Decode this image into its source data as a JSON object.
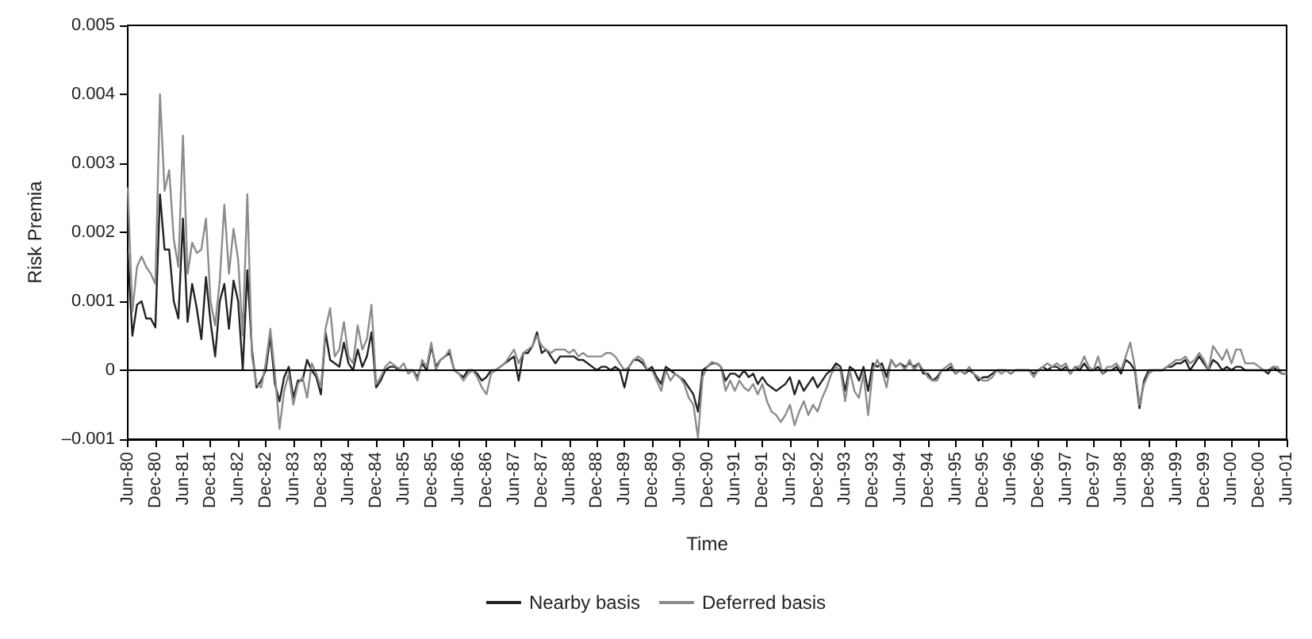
{
  "chart_data": {
    "type": "line",
    "xlabel": "Time",
    "ylabel": "Risk Premia",
    "categories": [
      "Jun-80",
      null,
      null,
      null,
      null,
      null,
      "Dec-80",
      null,
      null,
      null,
      null,
      null,
      "Jun-81",
      null,
      null,
      null,
      null,
      null,
      "Dec-81",
      null,
      null,
      null,
      null,
      null,
      "Jun-82",
      null,
      null,
      null,
      null,
      null,
      "Dec-82",
      null,
      null,
      null,
      null,
      null,
      "Jun-83",
      null,
      null,
      null,
      null,
      null,
      "Dec-83",
      null,
      null,
      null,
      null,
      null,
      "Jun-84",
      null,
      null,
      null,
      null,
      null,
      "Dec-84",
      null,
      null,
      null,
      null,
      null,
      "Jun-85",
      null,
      null,
      null,
      null,
      null,
      "Dec-85",
      null,
      null,
      null,
      null,
      null,
      "Jun-86",
      null,
      null,
      null,
      null,
      null,
      "Dec-86",
      null,
      null,
      null,
      null,
      null,
      "Jun-87",
      null,
      null,
      null,
      null,
      null,
      "Dec-87",
      null,
      null,
      null,
      null,
      null,
      "Jun-88",
      null,
      null,
      null,
      null,
      null,
      "Dec-88",
      null,
      null,
      null,
      null,
      null,
      "Jun-89",
      null,
      null,
      null,
      null,
      null,
      "Dec-89",
      null,
      null,
      null,
      null,
      null,
      "Jun-90",
      null,
      null,
      null,
      null,
      null,
      "Dec-90",
      null,
      null,
      null,
      null,
      null,
      "Jun-91",
      null,
      null,
      null,
      null,
      null,
      "Dec-91",
      null,
      null,
      null,
      null,
      null,
      "Jun-92",
      null,
      null,
      null,
      null,
      null,
      "Dec-92",
      null,
      null,
      null,
      null,
      null,
      "Jun-93",
      null,
      null,
      null,
      null,
      null,
      "Dec-93",
      null,
      null,
      null,
      null,
      null,
      "Jun-94",
      null,
      null,
      null,
      null,
      null,
      "Dec-94",
      null,
      null,
      null,
      null,
      null,
      "Jun-95",
      null,
      null,
      null,
      null,
      null,
      "Dec-95",
      null,
      null,
      null,
      null,
      null,
      "Jun-96",
      null,
      null,
      null,
      null,
      null,
      "Dec-96",
      null,
      null,
      null,
      null,
      null,
      "Jun-97",
      null,
      null,
      null,
      null,
      null,
      "Dec-97",
      null,
      null,
      null,
      null,
      null,
      "Jun-98",
      null,
      null,
      null,
      null,
      null,
      "Dec-98",
      null,
      null,
      null,
      null,
      null,
      "Jun-99",
      null,
      null,
      null,
      null,
      null,
      "Dec-99",
      null,
      null,
      null,
      null,
      null,
      "Jun-00",
      null,
      null,
      null,
      null,
      null,
      "Dec-00",
      null,
      null,
      null,
      null,
      null,
      "Jun-01"
    ],
    "series": [
      {
        "name": "Nearby basis",
        "color": "#222222",
        "values": [
          0.0017,
          0.0005,
          0.00095,
          0.001,
          0.00075,
          0.00075,
          0.00062,
          0.00255,
          0.00175,
          0.00175,
          0.001,
          0.00075,
          0.0022,
          0.0007,
          0.00125,
          0.0009,
          0.00045,
          0.00135,
          0.0007,
          0.0002,
          0.001,
          0.00125,
          0.0006,
          0.0013,
          0.001,
          0,
          0.00145,
          0.0003,
          -0.00025,
          -0.00015,
          0,
          0.0005,
          -0.0002,
          -0.00045,
          -0.0001,
          5e-05,
          -0.0004,
          -0.00015,
          -0.00015,
          0.00015,
          0,
          -0.0001,
          -0.00035,
          0.00055,
          0.00015,
          0.0001,
          5e-05,
          0.0004,
          0.0001,
          0,
          0.0003,
          5e-05,
          0.0002,
          0.00055,
          -0.00025,
          -0.00015,
          0,
          5e-05,
          5e-05,
          0,
          0,
          0,
          0,
          -0.0001,
          0.0001,
          0,
          0.00035,
          5e-05,
          0.00015,
          0.0002,
          0.00025,
          0,
          -5e-05,
          -0.0001,
          0,
          0,
          -5e-05,
          -0.00015,
          -0.0001,
          0,
          0,
          5e-05,
          0.0001,
          0.00015,
          0.0002,
          -0.00015,
          0.00025,
          0.00025,
          0.00035,
          0.00055,
          0.00025,
          0.0003,
          0.0002,
          0.0001,
          0.0002,
          0.0002,
          0.0002,
          0.0002,
          0.00015,
          0.00015,
          0.0001,
          5e-05,
          0,
          5e-05,
          5e-05,
          0,
          5e-05,
          0,
          -0.00025,
          5e-05,
          0.00015,
          0.00015,
          0.0001,
          0,
          5e-05,
          -0.0001,
          -0.0002,
          5e-05,
          0,
          -5e-05,
          -0.0001,
          -0.00015,
          -0.00025,
          -0.00035,
          -0.0006,
          0,
          5e-05,
          0.0001,
          0.0001,
          5e-05,
          -0.00015,
          -5e-05,
          -5e-05,
          -0.0001,
          0,
          -0.0001,
          -5e-05,
          -0.0002,
          -0.0001,
          -0.0002,
          -0.00025,
          -0.0003,
          -0.00025,
          -0.0002,
          -0.0001,
          -0.00035,
          -0.00015,
          -0.0003,
          -0.0002,
          -0.0001,
          -0.00025,
          -0.00015,
          -5e-05,
          0,
          0.0001,
          5e-05,
          -0.0003,
          5e-05,
          0,
          -0.00015,
          5e-05,
          -0.0003,
          0.0001,
          5e-05,
          0.0001,
          -0.0001,
          0.00015,
          5e-05,
          0.0001,
          5e-05,
          0.0001,
          5e-05,
          0.0001,
          -5e-05,
          -5e-05,
          -0.00015,
          -0.0001,
          0,
          0,
          5e-05,
          -5e-05,
          0,
          -5e-05,
          0,
          -5e-05,
          -0.00015,
          -0.0001,
          -0.0001,
          -5e-05,
          0,
          0,
          0,
          -5e-05,
          0,
          0,
          0,
          0,
          -5e-05,
          0,
          5e-05,
          0,
          5e-05,
          5e-05,
          0,
          5e-05,
          -5e-05,
          5e-05,
          0,
          0.0001,
          0,
          0,
          5e-05,
          -5e-05,
          0,
          0,
          5e-05,
          -5e-05,
          0.00015,
          0.0001,
          0,
          -0.00055,
          -0.00015,
          0,
          0,
          0,
          0,
          5e-05,
          5e-05,
          0.0001,
          0.0001,
          0.00015,
          0,
          0.0001,
          0.0002,
          0.0001,
          0,
          0.00015,
          0.0001,
          0,
          5e-05,
          0,
          5e-05,
          5e-05,
          0,
          0,
          0,
          0,
          0,
          -5e-05,
          5e-05,
          0,
          -5e-05,
          -5e-05
        ]
      },
      {
        "name": "Deferred basis",
        "color": "#8c8c8c",
        "values": [
          0.00265,
          0.00085,
          0.0015,
          0.00165,
          0.0015,
          0.0014,
          0.00125,
          0.004,
          0.0026,
          0.0029,
          0.0019,
          0.0015,
          0.0034,
          0.0014,
          0.00185,
          0.0017,
          0.00175,
          0.0022,
          0.001,
          0.00065,
          0.0013,
          0.0024,
          0.0014,
          0.00205,
          0.0016,
          0.0005,
          0.00255,
          0.0002,
          -0.0002,
          -0.00025,
          0.0001,
          0.0006,
          -5e-05,
          -0.00085,
          -0.0003,
          -5e-05,
          -0.0005,
          -0.0002,
          -0.0001,
          -0.0004,
          0.0001,
          -5e-05,
          -0.00025,
          0.0006,
          0.0009,
          0.0002,
          0.0003,
          0.0007,
          0.0002,
          0.0001,
          0.00065,
          0.0003,
          0.00045,
          0.00095,
          -0.0002,
          -0.0001,
          5e-05,
          0.00012,
          7e-05,
          2e-05,
          0.0001,
          -5e-05,
          0,
          -0.00015,
          0.00015,
          5e-05,
          0.0004,
          0,
          0.00015,
          0.0002,
          0.0003,
          0,
          -5e-05,
          -0.00015,
          -5e-05,
          0,
          -0.0001,
          -0.00025,
          -0.00035,
          -5e-05,
          0,
          5e-05,
          0.0001,
          0.0002,
          0.0003,
          0.0001,
          0.00025,
          0.0003,
          0.00035,
          0.0005,
          0.00035,
          0.0003,
          0.00025,
          0.0003,
          0.0003,
          0.0003,
          0.00025,
          0.0003,
          0.0002,
          0.00025,
          0.0002,
          0.0002,
          0.0002,
          0.0002,
          0.00025,
          0.00025,
          0.0002,
          0.0001,
          0,
          5e-05,
          0.00015,
          0.0002,
          0.00015,
          0,
          0,
          -0.00015,
          -0.0003,
          0,
          -0.00015,
          -5e-05,
          -0.0001,
          -0.0002,
          -0.0004,
          -0.0005,
          -0.00098,
          -0.0001,
          5e-05,
          0.00012,
          0.0001,
          5e-05,
          -0.0003,
          -0.00015,
          -0.0003,
          -0.00015,
          -0.00025,
          -0.0003,
          -0.0002,
          -0.00035,
          -0.0002,
          -0.00045,
          -0.0006,
          -0.00065,
          -0.00075,
          -0.00065,
          -0.0005,
          -0.0008,
          -0.0006,
          -0.00045,
          -0.00065,
          -0.0005,
          -0.0006,
          -0.0004,
          -0.00025,
          -5e-05,
          5e-05,
          0,
          -0.00045,
          0,
          -0.0003,
          -0.0004,
          -5e-05,
          -0.00065,
          0,
          0.00015,
          0,
          -0.00025,
          0.00015,
          5e-05,
          0.0001,
          0,
          0.00015,
          0,
          0.0001,
          0,
          -0.0001,
          -0.00015,
          -0.00015,
          0,
          5e-05,
          0.0001,
          -5e-05,
          0,
          -5e-05,
          5e-05,
          -5e-05,
          -0.0001,
          -0.00015,
          -0.00015,
          -0.0001,
          0,
          -5e-05,
          0,
          -5e-05,
          0,
          0,
          0,
          0,
          -0.0001,
          0,
          5e-05,
          0.0001,
          5e-05,
          0.0001,
          5e-05,
          0.0001,
          -5e-05,
          5e-05,
          5e-05,
          0.0002,
          5e-05,
          0,
          0.0002,
          -5e-05,
          5e-05,
          5e-05,
          0.0001,
          0,
          0.0002,
          0.0004,
          5e-05,
          -0.0005,
          -0.0002,
          -5e-05,
          0,
          0,
          0,
          5e-05,
          0.0001,
          0.00015,
          0.00015,
          0.0002,
          0.0001,
          0.00015,
          0.00025,
          0.00015,
          0,
          0.00035,
          0.00025,
          0.00015,
          0.0003,
          0.0001,
          0.0003,
          0.0003,
          0.0001,
          0.0001,
          0.0001,
          5e-05,
          0,
          0,
          5e-05,
          5e-05,
          -5e-05,
          -5e-05
        ]
      }
    ],
    "ylim": [
      -0.001,
      0.005
    ],
    "yticks": [
      {
        "value": -0.001,
        "label": "–0.001"
      },
      0,
      0.001,
      0.002,
      0.003,
      0.004,
      0.005
    ],
    "ref_lines": [
      {
        "axis": "y",
        "value": 0,
        "color": "#000000"
      }
    ],
    "grid": false,
    "legend": "bottom",
    "marker": "none",
    "line_style": "solid"
  }
}
